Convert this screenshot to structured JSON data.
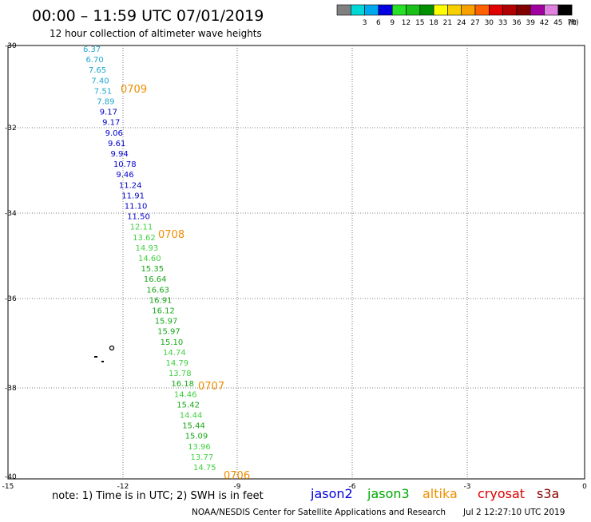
{
  "title": "00:00 – 11:59 UTC 07/01/2019",
  "subtitle": "12 hour collection of altimeter wave heights",
  "scale": {
    "unit": "(ft)",
    "bins": [
      {
        "color": "#808080",
        "label": ""
      },
      {
        "color": "#00d8d8",
        "label": "3"
      },
      {
        "color": "#00a8f0",
        "label": "6"
      },
      {
        "color": "#0000e0",
        "label": "9"
      },
      {
        "color": "#28e028",
        "label": "12"
      },
      {
        "color": "#18c018",
        "label": "15"
      },
      {
        "color": "#009000",
        "label": "18"
      },
      {
        "color": "#ffff00",
        "label": "21"
      },
      {
        "color": "#f8d000",
        "label": "24"
      },
      {
        "color": "#f8a000",
        "label": "27"
      },
      {
        "color": "#ff6000",
        "label": "30"
      },
      {
        "color": "#e00000",
        "label": "33"
      },
      {
        "color": "#b00000",
        "label": "36"
      },
      {
        "color": "#800000",
        "label": "39"
      },
      {
        "color": "#a000a0",
        "label": "42"
      },
      {
        "color": "#e080e0",
        "label": "45"
      },
      {
        "color": "#000000",
        "label": "70"
      }
    ]
  },
  "map": {
    "x_ticks": [
      "-15",
      "-12",
      "-9",
      "-6",
      "-3",
      "0"
    ],
    "y_ticks": [
      "-30",
      "-32",
      "-34",
      "-36",
      "-38",
      "-40"
    ]
  },
  "chart_data": {
    "type": "scatter",
    "title": "00:00 – 11:59 UTC 07/01/2019",
    "subtitle": "12 hour collection of altimeter wave heights",
    "xlim": [
      -15,
      0
    ],
    "ylim": [
      -40,
      -30
    ],
    "grid": true,
    "series": [
      {
        "name": "jason3",
        "values_ft": [
          {
            "value": "6.37",
            "color": "#20a8d0"
          },
          {
            "value": "6.70",
            "color": "#20a8d0"
          },
          {
            "value": "7.65",
            "color": "#20a8d0"
          },
          {
            "value": "7.40",
            "color": "#20a8d0"
          },
          {
            "value": "7.51",
            "color": "#20a8d0"
          },
          {
            "value": "7.89",
            "color": "#20a8d0"
          },
          {
            "value": "9.17",
            "color": "#0000cc"
          },
          {
            "value": "9.17",
            "color": "#0000cc"
          },
          {
            "value": "9.06",
            "color": "#0000cc"
          },
          {
            "value": "9.61",
            "color": "#0000cc"
          },
          {
            "value": "9.94",
            "color": "#0000cc"
          },
          {
            "value": "10.78",
            "color": "#0000cc"
          },
          {
            "value": "9.46",
            "color": "#0000cc"
          },
          {
            "value": "11.24",
            "color": "#0000cc"
          },
          {
            "value": "11.91",
            "color": "#0000cc"
          },
          {
            "value": "11.10",
            "color": "#0000cc"
          },
          {
            "value": "11.50",
            "color": "#0000cc"
          },
          {
            "value": "12.11",
            "color": "#40d040"
          },
          {
            "value": "13.62",
            "color": "#40d040"
          },
          {
            "value": "14.93",
            "color": "#40d040"
          },
          {
            "value": "14.60",
            "color": "#40d040"
          },
          {
            "value": "15.35",
            "color": "#18a818"
          },
          {
            "value": "16.64",
            "color": "#18a818"
          },
          {
            "value": "16.63",
            "color": "#18a818"
          },
          {
            "value": "16.91",
            "color": "#18a818"
          },
          {
            "value": "16.12",
            "color": "#18a818"
          },
          {
            "value": "15.97",
            "color": "#18a818"
          },
          {
            "value": "15.97",
            "color": "#18a818"
          },
          {
            "value": "15.10",
            "color": "#18a818"
          },
          {
            "value": "14.74",
            "color": "#40d040"
          },
          {
            "value": "14.79",
            "color": "#40d040"
          },
          {
            "value": "13.78",
            "color": "#40d040"
          },
          {
            "value": "16.18",
            "color": "#18a818"
          },
          {
            "value": "14.46",
            "color": "#40d040"
          },
          {
            "value": "15.42",
            "color": "#18a818"
          },
          {
            "value": "14.44",
            "color": "#40d040"
          },
          {
            "value": "15.44",
            "color": "#18a818"
          },
          {
            "value": "15.09",
            "color": "#18a818"
          },
          {
            "value": "13.96",
            "color": "#40d040"
          },
          {
            "value": "13.77",
            "color": "#40d040"
          },
          {
            "value": "14.75",
            "color": "#40d040"
          }
        ]
      }
    ],
    "time_labels": [
      {
        "text": "0709",
        "color": "#f08c00"
      },
      {
        "text": "0708",
        "color": "#f08c00"
      },
      {
        "text": "0707",
        "color": "#f08c00"
      },
      {
        "text": "0706",
        "color": "#f08c00"
      }
    ]
  },
  "footer": {
    "note": "note: 1) Time is in UTC; 2) SWH is in feet",
    "credit": "NOAA/NESDIS Center for Satellite Applications and Research",
    "timestamp": "Jul  2 12:27:10 UTC 2019",
    "legend": [
      {
        "name": "jason2",
        "color": "#0000dd"
      },
      {
        "name": "jason3",
        "color": "#00aa00"
      },
      {
        "name": "altika",
        "color": "#f09000"
      },
      {
        "name": "cryosat",
        "color": "#dd0000"
      },
      {
        "name": "s3a",
        "color": "#880000"
      }
    ]
  }
}
